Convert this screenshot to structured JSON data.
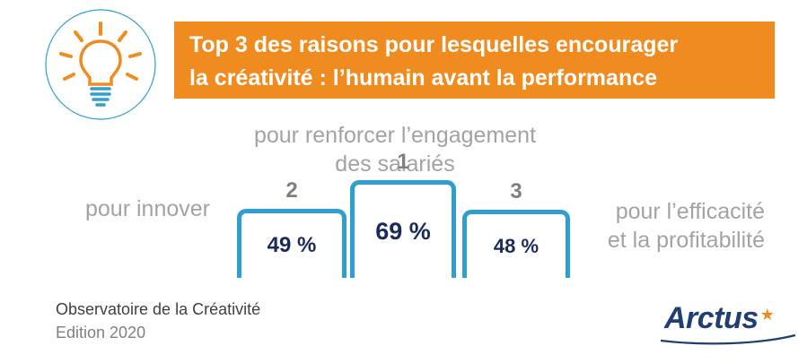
{
  "header": {
    "title_line1": "Top 3 des raisons pour lesquelles encourager",
    "title_line2": "la créativité : l’humain avant la performance"
  },
  "icon": "lightbulb-icon",
  "colors": {
    "banner": "#ef8b1f",
    "box_border": "#2e9fcf",
    "value_text": "#1b2a5c",
    "reason_text": "#a3a3a3",
    "rank_text": "#7f7f7f",
    "brand": "#203e76",
    "star": "#ef8b1f"
  },
  "chart_data": {
    "type": "bar",
    "title": "Top 3 des raisons pour lesquelles encourager la créativité : l’humain avant la performance",
    "categories": [
      "pour innover",
      "pour renforcer l’engagement des salariés",
      "pour l’efficacité et la profitabilité"
    ],
    "series": [
      {
        "values": [
          49,
          69,
          48
        ],
        "value_labels": [
          "49 %",
          "69 %",
          "48 %"
        ],
        "ranks": [
          "2",
          "1",
          "3"
        ]
      }
    ],
    "unit": "%",
    "layout": "podium"
  },
  "reasons": {
    "left_line1": "pour innover",
    "top_line1": "pour renforcer l’engagement",
    "top_line2": "des salariés",
    "right_line1": "pour l’efficacité",
    "right_line2": "et la profitabilité"
  },
  "footer": {
    "source_line1": "Observatoire de la Créativité",
    "source_line2": "Edition 2020",
    "brand": "Arctus",
    "brand_star": "★"
  }
}
